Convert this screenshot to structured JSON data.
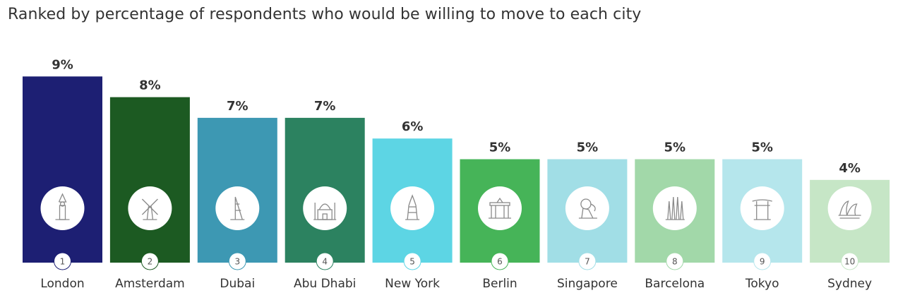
{
  "chart_data": {
    "type": "bar",
    "title": "Ranked by percentage of respondents who would be willing to move to each city",
    "categories": [
      "London",
      "Amsterdam",
      "Dubai",
      "Abu Dhabi",
      "New York",
      "Berlin",
      "Singapore",
      "Barcelona",
      "Tokyo",
      "Sydney"
    ],
    "values": [
      9,
      8,
      7,
      7,
      6,
      5,
      5,
      5,
      5,
      4
    ],
    "value_labels": [
      "9%",
      "8%",
      "7%",
      "7%",
      "6%",
      "5%",
      "5%",
      "5%",
      "5%",
      "4%"
    ],
    "ranks": [
      "1",
      "2",
      "3",
      "4",
      "5",
      "6",
      "7",
      "8",
      "9",
      "10"
    ],
    "icons": [
      "big-ben-icon",
      "windmill-icon",
      "burj-al-arab-icon",
      "mosque-icon",
      "skyscraper-icon",
      "brandenburg-gate-icon",
      "merlion-icon",
      "sagrada-familia-icon",
      "torii-gate-icon",
      "opera-house-icon"
    ],
    "colors": [
      "#1d1f73",
      "#1c5a22",
      "#3d98b3",
      "#2c8260",
      "#5dd5e4",
      "#46b458",
      "#a1dee6",
      "#a2d8a9",
      "#b5e6ec",
      "#c6e6c6"
    ],
    "ylim": [
      0,
      10
    ],
    "grid": false,
    "legend": "none"
  }
}
